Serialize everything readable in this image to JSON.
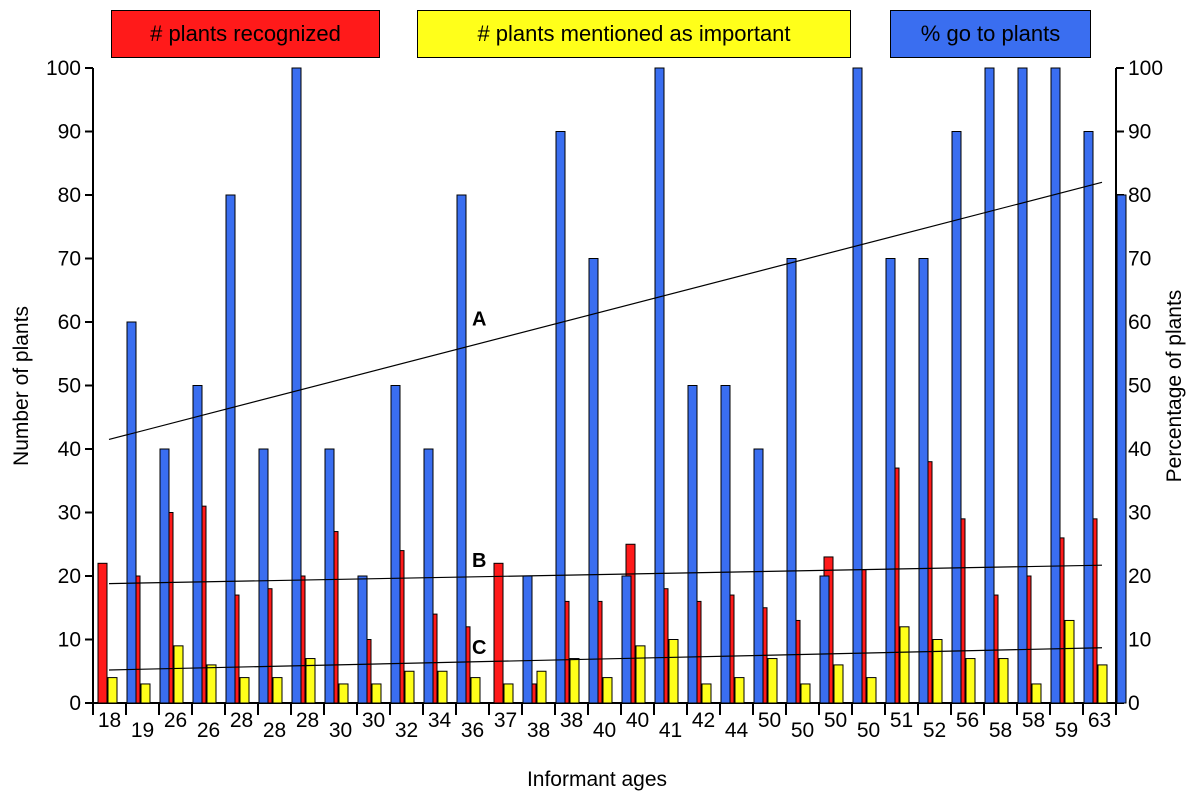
{
  "chart_data": {
    "type": "bar",
    "xlabel": "Informant ages",
    "ylabel": "Number of plants",
    "y2label": "Percentage of plants",
    "ylim": [
      0,
      100
    ],
    "yticks": [
      0,
      10,
      20,
      30,
      40,
      50,
      60,
      70,
      80,
      90,
      100
    ],
    "categories": [
      "18",
      "19",
      "26",
      "26",
      "28",
      "28",
      "28",
      "30",
      "30",
      "32",
      "34",
      "36",
      "37",
      "38",
      "38",
      "40",
      "40",
      "41",
      "42",
      "44",
      "50",
      "50",
      "50",
      "50",
      "51",
      "52",
      "56",
      "58",
      "58",
      "59",
      "63"
    ],
    "series": [
      {
        "name": "# plants recognized",
        "color": "#ff1a1a",
        "axis": "left",
        "values": [
          22,
          20,
          30,
          31,
          17,
          18,
          20,
          27,
          10,
          24,
          14,
          12,
          22,
          3,
          16,
          16,
          25,
          18,
          16,
          17,
          15,
          13,
          23,
          21,
          37,
          38,
          29,
          17,
          20,
          26,
          29
        ]
      },
      {
        "name": "# plants mentioned as important",
        "color": "#ffff1a",
        "axis": "left",
        "values": [
          4,
          3,
          9,
          6,
          4,
          4,
          7,
          3,
          3,
          5,
          5,
          4,
          3,
          5,
          7,
          4,
          9,
          10,
          3,
          4,
          7,
          3,
          6,
          4,
          12,
          10,
          7,
          7,
          3,
          13,
          6
        ]
      },
      {
        "name": "% go to plants",
        "color": "#3a6ef0",
        "axis": "right",
        "values": [
          60,
          40,
          50,
          80,
          40,
          100,
          40,
          20,
          50,
          40,
          80,
          null,
          20,
          90,
          70,
          20,
          100,
          50,
          50,
          40,
          70,
          20,
          100,
          70,
          70,
          90,
          100,
          100,
          100,
          90,
          80
        ]
      }
    ],
    "trendlines": [
      {
        "label": "A",
        "from": 41.5,
        "to": 82
      },
      {
        "label": "B",
        "from": 18.8,
        "to": 21.7
      },
      {
        "label": "C",
        "from": 5.2,
        "to": 8.7
      }
    ]
  }
}
